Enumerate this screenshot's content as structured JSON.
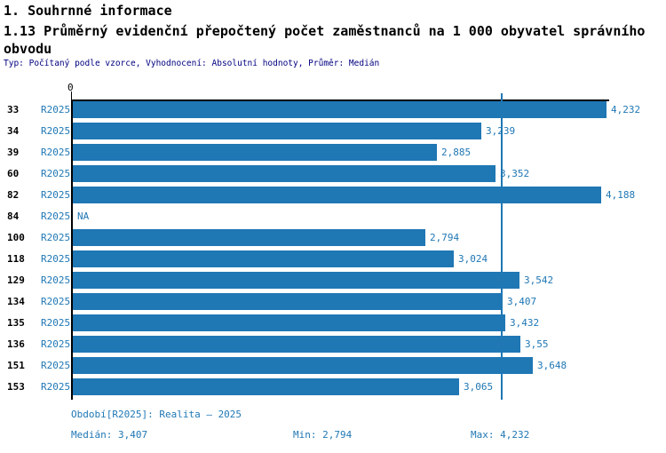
{
  "header": {
    "title1": "1. Souhrnné informace",
    "title2_line1": "1.13 Průměrný evidenční přepočtený počet zaměstnanců na 1 000 obyvatel správního",
    "title2_line2": "obvodu",
    "subtitle": "Typ: Počítaný podle vzorce, Vyhodnocení: Absolutní hodnoty, Průměr: Medián"
  },
  "chart_data": {
    "type": "bar",
    "orientation": "horizontal",
    "title": "1.13 Průměrný evidenční přepočtený počet zaměstnanců na 1 000 obyvatel správního obvodu",
    "series_label": "R2025",
    "categories": [
      "33",
      "34",
      "39",
      "60",
      "82",
      "84",
      "100",
      "118",
      "129",
      "134",
      "135",
      "136",
      "151",
      "153"
    ],
    "values": [
      4.232,
      3.239,
      2.885,
      3.352,
      4.188,
      null,
      2.794,
      3.024,
      3.542,
      3.407,
      3.432,
      3.55,
      3.648,
      3.065
    ],
    "value_labels": [
      "4,232",
      "3,239",
      "2,885",
      "3,352",
      "4,188",
      "NA",
      "2,794",
      "3,024",
      "3,542",
      "3,407",
      "3,432",
      "3,55",
      "3,648",
      "3,065"
    ],
    "na_label": "NA",
    "axis": {
      "zero_label": "0",
      "x_min": 0,
      "x_max": 4.232
    },
    "median_value": 3.407,
    "min_value": 2.794,
    "max_value": 4.232,
    "legend_position": "none",
    "grid": false,
    "bar_color": "#1f77b4",
    "median_line_color": "#1f77b4"
  },
  "footer": {
    "period": "Období[R2025]: Realita – 2025",
    "median": "Medián: 3,407",
    "min": "Min: 2,794",
    "max": "Max: 4,232"
  },
  "colors": {
    "accent_text": "#1f77b4",
    "subtitle_text": "#000080",
    "axis": "#000000",
    "background": "#ffffff"
  }
}
